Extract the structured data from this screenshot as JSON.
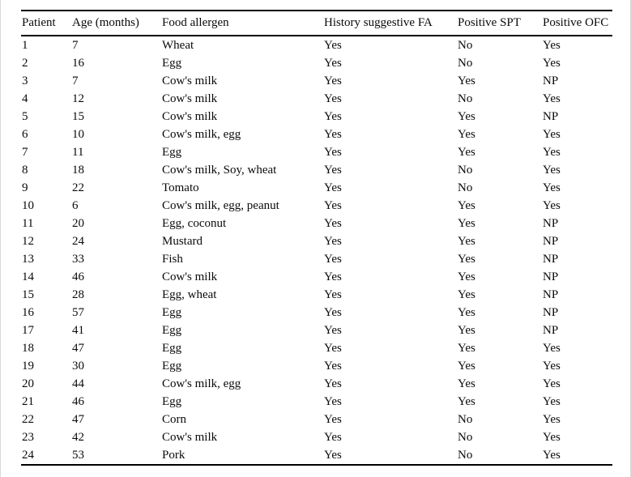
{
  "table": {
    "columns": [
      "Patient",
      "Age (months)",
      "Food allergen",
      "History suggestive FA",
      "Positive SPT",
      "Positive OFC"
    ],
    "rows": [
      [
        "1",
        "7",
        "Wheat",
        "Yes",
        "No",
        "Yes"
      ],
      [
        "2",
        "16",
        "Egg",
        "Yes",
        "No",
        "Yes"
      ],
      [
        "3",
        "7",
        "Cow's milk",
        "Yes",
        "Yes",
        "NP"
      ],
      [
        "4",
        "12",
        "Cow's milk",
        "Yes",
        "No",
        "Yes"
      ],
      [
        "5",
        "15",
        "Cow's milk",
        "Yes",
        "Yes",
        "NP"
      ],
      [
        "6",
        "10",
        "Cow's milk, egg",
        "Yes",
        "Yes",
        "Yes"
      ],
      [
        "7",
        "11",
        "Egg",
        "Yes",
        "Yes",
        "Yes"
      ],
      [
        "8",
        "18",
        "Cow's milk, Soy, wheat",
        "Yes",
        "No",
        "Yes"
      ],
      [
        "9",
        "22",
        "Tomato",
        "Yes",
        "No",
        "Yes"
      ],
      [
        "10",
        "6",
        "Cow's milk, egg, peanut",
        "Yes",
        "Yes",
        "Yes"
      ],
      [
        "11",
        "20",
        "Egg, coconut",
        "Yes",
        "Yes",
        "NP"
      ],
      [
        "12",
        "24",
        "Mustard",
        "Yes",
        "Yes",
        "NP"
      ],
      [
        "13",
        "33",
        "Fish",
        "Yes",
        "Yes",
        "NP"
      ],
      [
        "14",
        "46",
        "Cow's milk",
        "Yes",
        "Yes",
        "NP"
      ],
      [
        "15",
        "28",
        "Egg, wheat",
        "Yes",
        "Yes",
        "NP"
      ],
      [
        "16",
        "57",
        "Egg",
        "Yes",
        "Yes",
        "NP"
      ],
      [
        "17",
        "41",
        "Egg",
        "Yes",
        "Yes",
        "NP"
      ],
      [
        "18",
        "47",
        "Egg",
        "Yes",
        "Yes",
        "Yes"
      ],
      [
        "19",
        "30",
        "Egg",
        "Yes",
        "Yes",
        "Yes"
      ],
      [
        "20",
        "44",
        "Cow's milk, egg",
        "Yes",
        "Yes",
        "Yes"
      ],
      [
        "21",
        "46",
        "Egg",
        "Yes",
        "Yes",
        "Yes"
      ],
      [
        "22",
        "47",
        "Corn",
        "Yes",
        "No",
        "Yes"
      ],
      [
        "23",
        "42",
        "Cow's milk",
        "Yes",
        "No",
        "Yes"
      ],
      [
        "24",
        "53",
        "Pork",
        "Yes",
        "No",
        "Yes"
      ]
    ]
  },
  "colors": {
    "rule": "#000000",
    "frame": "#d9d9d9",
    "text": "#0a0a0a",
    "background": "#ffffff"
  }
}
